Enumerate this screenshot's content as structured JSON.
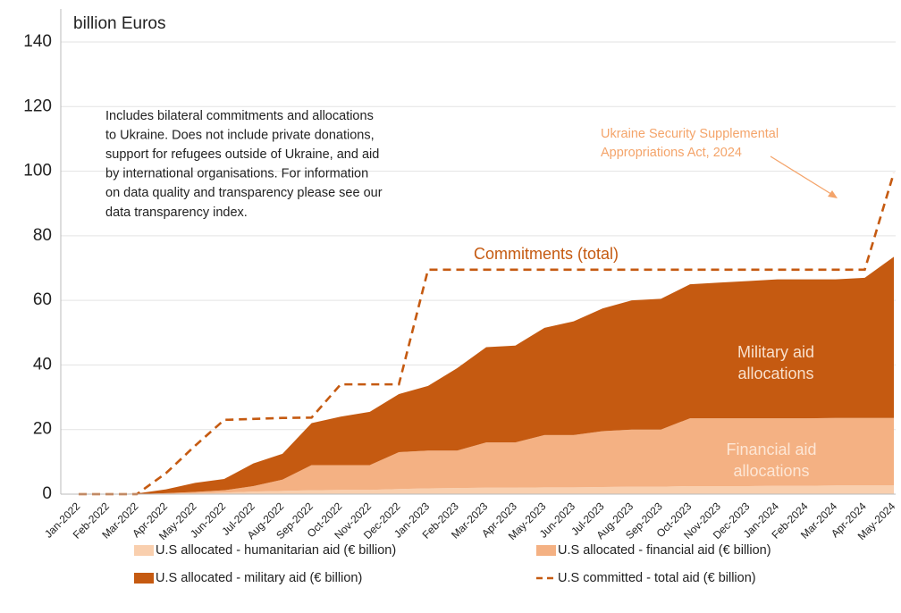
{
  "chart_data": {
    "type": "area",
    "title": "billion Euros",
    "categories": [
      "Jan-2022",
      "Feb-2022",
      "Mar-2022",
      "Apr-2022",
      "May-2022",
      "Jun-2022",
      "Jul-2022",
      "Aug-2022",
      "Sep-2022",
      "Oct-2022",
      "Nov-2022",
      "Dec-2022",
      "Jan-2023",
      "Feb-2023",
      "Mar-2023",
      "Apr-2023",
      "May-2023",
      "Jun-2023",
      "Jul-2023",
      "Aug-2023",
      "Sep-2023",
      "Oct-2023",
      "Nov-2023",
      "Dec-2023",
      "Jan-2024",
      "Feb-2024",
      "Mar-2024",
      "Apr-2024",
      "May-2024"
    ],
    "series": [
      {
        "name": "U.S allocated - humanitarian aid (€ billion)",
        "color": "#f9cfae",
        "style": "stacked-area",
        "values": [
          0,
          0,
          0,
          0.1,
          0.3,
          0.5,
          0.8,
          1,
          1.2,
          1.3,
          1.3,
          1.6,
          1.8,
          1.9,
          2,
          2,
          2.1,
          2.1,
          2.2,
          2.3,
          2.3,
          2.5,
          2.5,
          2.5,
          2.6,
          2.6,
          2.7,
          2.7,
          2.7
        ]
      },
      {
        "name": "U.S allocated - financial aid (€ billion)",
        "color": "#f4b183",
        "style": "stacked-area",
        "values": [
          0,
          0,
          0,
          0.2,
          0.4,
          0.7,
          1.7,
          3.5,
          7.8,
          7.7,
          7.7,
          11.4,
          11.7,
          11.6,
          14,
          14,
          16.2,
          16.2,
          17.3,
          17.7,
          17.7,
          21,
          21,
          21,
          20.9,
          20.9,
          20.9,
          20.9,
          20.9
        ]
      },
      {
        "name": "U.S allocated - military aid (€ billion)",
        "color": "#c55a11",
        "style": "stacked-area",
        "values": [
          0,
          0,
          0.2,
          1.2,
          2.8,
          3.5,
          7,
          8,
          13,
          15,
          16.5,
          18,
          20,
          25.5,
          29.5,
          30,
          33.2,
          35.2,
          38,
          40,
          40.5,
          41.5,
          42,
          42.5,
          43,
          43,
          42.9,
          43.4,
          49.9
        ]
      },
      {
        "name": "U.S committed - total aid (€ billion)",
        "color": "#c55a11",
        "style": "dashed-line",
        "values": [
          0,
          0,
          0,
          6.5,
          15,
          23,
          23.3,
          23.6,
          23.7,
          34,
          34,
          34,
          69.5,
          69.5,
          69.5,
          69.5,
          69.5,
          69.5,
          69.5,
          69.5,
          69.5,
          69.5,
          69.5,
          69.5,
          69.5,
          69.5,
          69.5,
          69.5,
          99.5
        ]
      }
    ],
    "ylim": [
      0,
      140
    ],
    "yticks": [
      0,
      20,
      40,
      60,
      80,
      100,
      120,
      140
    ],
    "grid": true,
    "legend": "bottom",
    "annotations": [
      {
        "lines": [
          "Includes bilateral commitments and allocations",
          "to Ukraine. Does not include private donations,",
          "support for refugees outside of Ukraine, and aid",
          "by international organisations.  For information",
          "on data quality and transparency please see our",
          "data transparency index."
        ],
        "color": "#222222"
      },
      {
        "lines": [
          "Ukraine Security Supplemental",
          "Appropriations Act, 2024"
        ],
        "color": "#f4a46a"
      },
      {
        "lines": [
          "Commitments (total)"
        ],
        "color": "#c55a11"
      },
      {
        "lines": [
          "Military aid",
          "allocations"
        ],
        "color": "#f8e0cc"
      },
      {
        "lines": [
          "Financial aid",
          "allocations"
        ],
        "color": "#fde7d6"
      }
    ]
  }
}
